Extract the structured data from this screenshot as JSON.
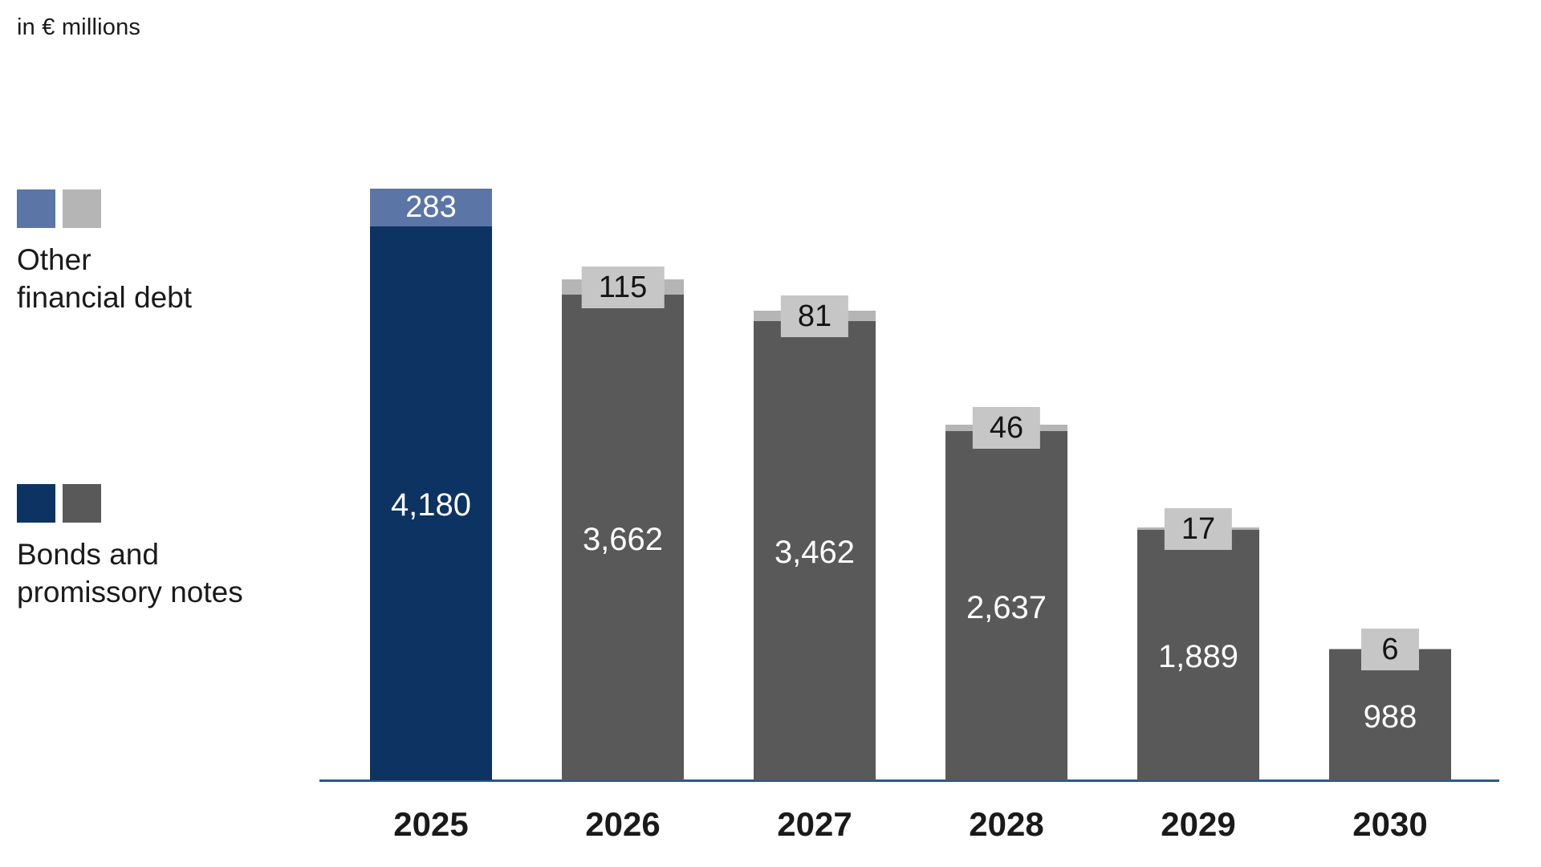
{
  "title": "in € millions",
  "legend": {
    "other": {
      "line1": "Other",
      "line2": "financial debt"
    },
    "bonds": {
      "line1": "Bonds and",
      "line2": "promissory notes"
    }
  },
  "chart_data": {
    "type": "bar",
    "stacked": true,
    "title": "in € millions",
    "unit": "EUR millions",
    "categories": [
      "2025",
      "2026",
      "2027",
      "2028",
      "2029",
      "2030"
    ],
    "series": [
      {
        "name": "Bonds and promissory notes",
        "values": [
          4180,
          3662,
          3462,
          2637,
          1889,
          988
        ],
        "labels": [
          "4,180",
          "3,662",
          "3,462",
          "2,637",
          "1,889",
          "988"
        ]
      },
      {
        "name": "Other financial debt",
        "values": [
          283,
          115,
          81,
          46,
          17,
          6
        ],
        "labels": [
          "283",
          "115",
          "81",
          "46",
          "17",
          "6"
        ]
      }
    ],
    "highlight_category": "2025",
    "legend_position": "left",
    "ylim": [
      0,
      4463
    ],
    "grid": false,
    "axis": "baseline-only"
  },
  "colors": {
    "bonds_highlight": "#0d3363",
    "other_highlight": "#5b76a6",
    "bonds_gray": "#595959",
    "other_gray": "#b5b5b5",
    "label_box": "#c6c6c6",
    "axis_line": "#2d5884",
    "text_dark": "#141414",
    "text_light": "#ffffff"
  }
}
